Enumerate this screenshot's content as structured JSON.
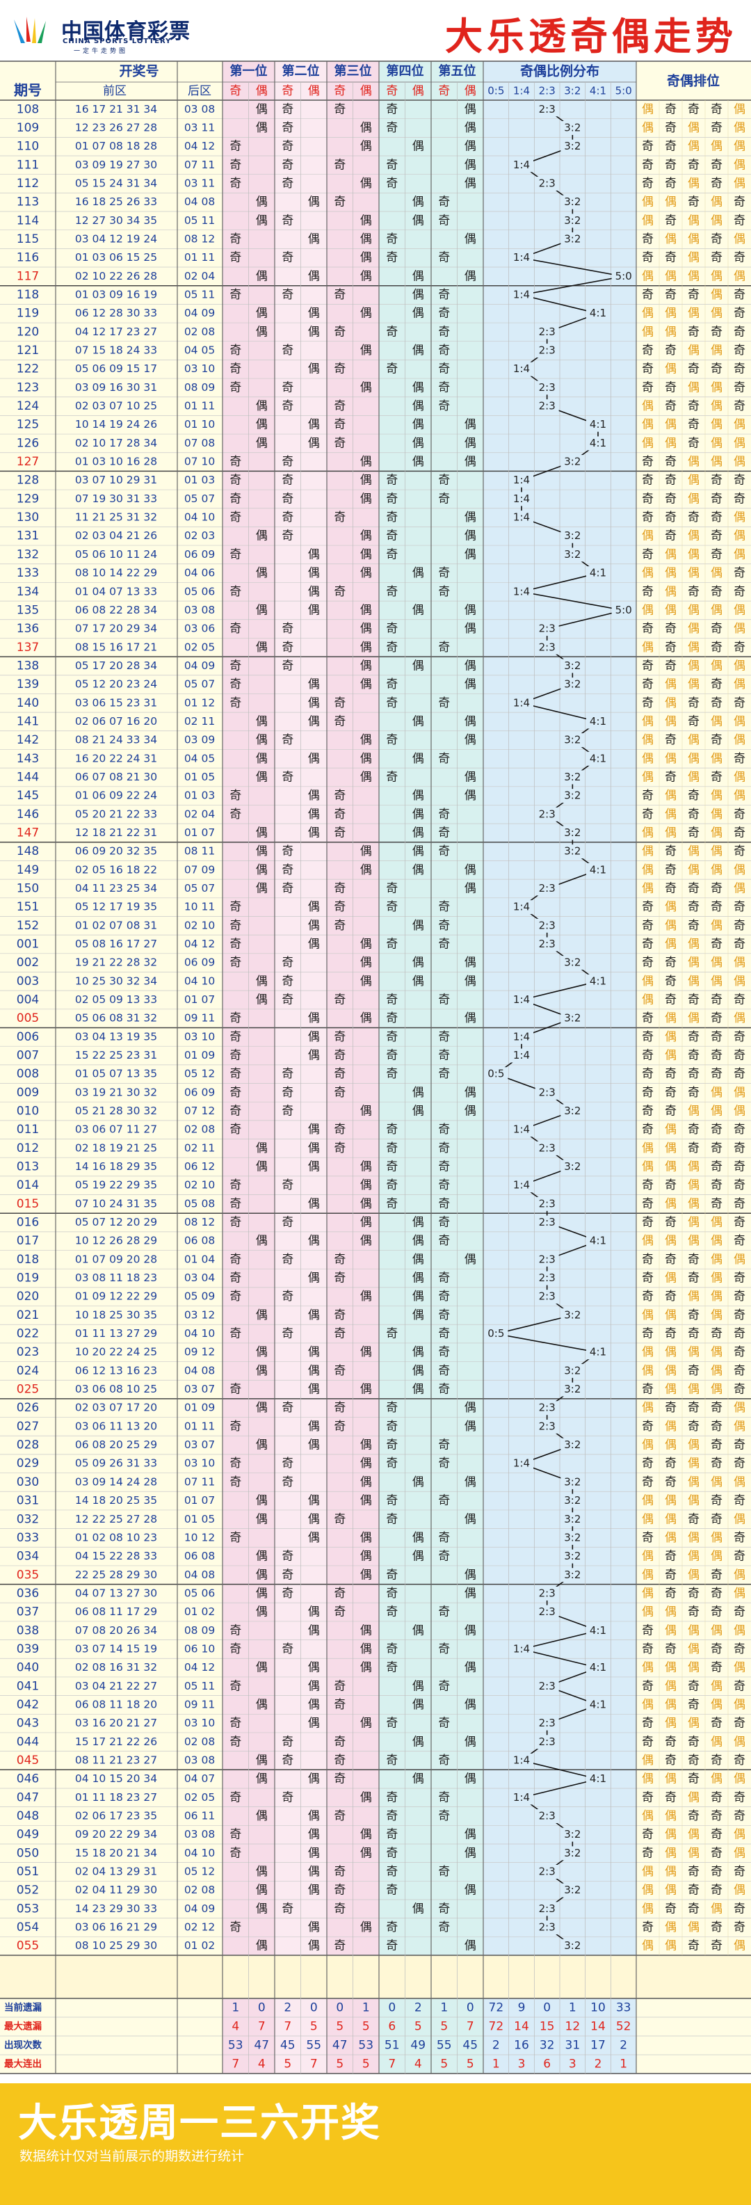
{
  "header": {
    "logo_cn": "中国体育彩票",
    "logo_en": "CHINA SPORTS LOTTERY",
    "logo_slogan": "一定牛走势图",
    "title": "大乐透奇偶走势"
  },
  "footer": {
    "title": "大乐透周一三六开奖",
    "note": "数据统计仅对当前展示的期数进行统计"
  },
  "colors": {
    "accent": "#e0241c",
    "brand": "#0e2a6e",
    "yellow": "#f6c51b",
    "odd_pink": "#f7dce8",
    "even_pink": "#fbeaf1",
    "pos45": "#d8f1ef",
    "ratio": "#d9ecf8",
    "prize": "#fffde4"
  },
  "chart_data": {
    "type": "table",
    "title": "大乐透奇偶走势",
    "columns": {
      "issue": "期号",
      "numbers": "开奖号",
      "front": "前区",
      "back": "后区",
      "positions": [
        "第一位",
        "第二位",
        "第三位",
        "第四位",
        "第五位"
      ],
      "odd": "奇",
      "even": "偶",
      "ratio_title": "奇偶比例分布",
      "ratios": [
        "0:5",
        "1:4",
        "2:3",
        "3:2",
        "4:1",
        "5:0"
      ],
      "arrangement": "奇偶排位"
    },
    "rows": [
      {
        "issue": "108",
        "front": "16 17 21 31 34",
        "back": "03 08"
      },
      {
        "issue": "109",
        "front": "12 23 26 27 28",
        "back": "03 11"
      },
      {
        "issue": "110",
        "front": "01 07 08 18 28",
        "back": "04 12"
      },
      {
        "issue": "111",
        "front": "03 09 19 27 30",
        "back": "07 11"
      },
      {
        "issue": "112",
        "front": "05 15 24 31 34",
        "back": "03 11"
      },
      {
        "issue": "113",
        "front": "16 18 25 26 33",
        "back": "04 08"
      },
      {
        "issue": "114",
        "front": "12 27 30 34 35",
        "back": "05 11"
      },
      {
        "issue": "115",
        "front": "03 04 12 19 24",
        "back": "08 12"
      },
      {
        "issue": "116",
        "front": "01 03 06 15 25",
        "back": "01 11"
      },
      {
        "issue": "117",
        "front": "02 10 22 26 28",
        "back": "02 04"
      },
      {
        "issue": "118",
        "front": "01 03 09 16 19",
        "back": "05 11"
      },
      {
        "issue": "119",
        "front": "06 12 28 30 33",
        "back": "04 09"
      },
      {
        "issue": "120",
        "front": "04 12 17 23 27",
        "back": "02 08"
      },
      {
        "issue": "121",
        "front": "07 15 18 24 33",
        "back": "04 05"
      },
      {
        "issue": "122",
        "front": "05 06 09 15 17",
        "back": "03 10"
      },
      {
        "issue": "123",
        "front": "03 09 16 30 31",
        "back": "08 09"
      },
      {
        "issue": "124",
        "front": "02 03 07 10 25",
        "back": "01 11"
      },
      {
        "issue": "125",
        "front": "10 14 19 24 26",
        "back": "01 10"
      },
      {
        "issue": "126",
        "front": "02 10 17 28 34",
        "back": "07 08"
      },
      {
        "issue": "127",
        "front": "01 03 10 16 28",
        "back": "07 10"
      },
      {
        "issue": "128",
        "front": "03 07 10 29 31",
        "back": "01 03"
      },
      {
        "issue": "129",
        "front": "07 19 30 31 33",
        "back": "05 07"
      },
      {
        "issue": "130",
        "front": "11 21 25 31 32",
        "back": "04 10"
      },
      {
        "issue": "131",
        "front": "02 03 04 21 26",
        "back": "02 03"
      },
      {
        "issue": "132",
        "front": "05 06 10 11 24",
        "back": "06 09"
      },
      {
        "issue": "133",
        "front": "08 10 14 22 29",
        "back": "04 06"
      },
      {
        "issue": "134",
        "front": "01 04 07 13 33",
        "back": "05 06"
      },
      {
        "issue": "135",
        "front": "06 08 22 28 34",
        "back": "03 08"
      },
      {
        "issue": "136",
        "front": "07 17 20 29 34",
        "back": "03 06"
      },
      {
        "issue": "137",
        "front": "08 15 16 17 21",
        "back": "02 05"
      },
      {
        "issue": "138",
        "front": "05 17 20 28 34",
        "back": "04 09"
      },
      {
        "issue": "139",
        "front": "05 12 20 23 24",
        "back": "05 07"
      },
      {
        "issue": "140",
        "front": "03 06 15 23 31",
        "back": "01 12"
      },
      {
        "issue": "141",
        "front": "02 06 07 16 20",
        "back": "02 11"
      },
      {
        "issue": "142",
        "front": "08 21 24 33 34",
        "back": "03 09"
      },
      {
        "issue": "143",
        "front": "16 20 22 24 31",
        "back": "04 05"
      },
      {
        "issue": "144",
        "front": "06 07 08 21 30",
        "back": "01 05"
      },
      {
        "issue": "145",
        "front": "01 06 09 22 24",
        "back": "01 03"
      },
      {
        "issue": "146",
        "front": "05 20 21 22 33",
        "back": "02 04"
      },
      {
        "issue": "147",
        "front": "12 18 21 22 31",
        "back": "01 07"
      },
      {
        "issue": "148",
        "front": "06 09 20 32 35",
        "back": "08 11"
      },
      {
        "issue": "149",
        "front": "02 05 16 18 22",
        "back": "07 09"
      },
      {
        "issue": "150",
        "front": "04 11 23 25 34",
        "back": "05 07"
      },
      {
        "issue": "151",
        "front": "05 12 17 19 35",
        "back": "10 11"
      },
      {
        "issue": "152",
        "front": "01 02 07 08 31",
        "back": "02 10"
      },
      {
        "issue": "001",
        "front": "05 08 16 17 27",
        "back": "04 12"
      },
      {
        "issue": "002",
        "front": "19 21 22 28 32",
        "back": "06 09"
      },
      {
        "issue": "003",
        "front": "10 25 30 32 34",
        "back": "04 10"
      },
      {
        "issue": "004",
        "front": "02 05 09 13 33",
        "back": "01 07"
      },
      {
        "issue": "005",
        "front": "05 06 08 31 32",
        "back": "09 11"
      },
      {
        "issue": "006",
        "front": "03 04 13 19 35",
        "back": "03 10"
      },
      {
        "issue": "007",
        "front": "15 22 25 23 31",
        "back": "01 09"
      },
      {
        "issue": "008",
        "front": "01 05 07 13 35",
        "back": "05 12"
      },
      {
        "issue": "009",
        "front": "03 19 21 30 32",
        "back": "06 09"
      },
      {
        "issue": "010",
        "front": "05 21 28 30 32",
        "back": "07 12"
      },
      {
        "issue": "011",
        "front": "03 06 07 11 27",
        "back": "02 08"
      },
      {
        "issue": "012",
        "front": "02 18 19 21 25",
        "back": "02 11"
      },
      {
        "issue": "013",
        "front": "14 16 18 29 35",
        "back": "06 12"
      },
      {
        "issue": "014",
        "front": "05 19 22 29 35",
        "back": "02 10"
      },
      {
        "issue": "015",
        "front": "07 10 24 31 35",
        "back": "05 08"
      },
      {
        "issue": "016",
        "front": "05 07 12 20 29",
        "back": "08 12"
      },
      {
        "issue": "017",
        "front": "10 12 26 28 29",
        "back": "06 08"
      },
      {
        "issue": "018",
        "front": "01 07 09 20 28",
        "back": "01 04"
      },
      {
        "issue": "019",
        "front": "03 08 11 18 23",
        "back": "03 04"
      },
      {
        "issue": "020",
        "front": "01 09 12 22 29",
        "back": "05 09"
      },
      {
        "issue": "021",
        "front": "10 18 25 30 35",
        "back": "03 12"
      },
      {
        "issue": "022",
        "front": "01 11 13 27 29",
        "back": "04 10"
      },
      {
        "issue": "023",
        "front": "10 20 22 24 25",
        "back": "09 12"
      },
      {
        "issue": "024",
        "front": "06 12 13 16 23",
        "back": "04 08"
      },
      {
        "issue": "025",
        "front": "03 06 08 10 25",
        "back": "03 07"
      },
      {
        "issue": "026",
        "front": "02 03 07 17 20",
        "back": "01 09"
      },
      {
        "issue": "027",
        "front": "03 06 11 13 20",
        "back": "01 11"
      },
      {
        "issue": "028",
        "front": "06 08 20 25 29",
        "back": "03 07"
      },
      {
        "issue": "029",
        "front": "05 09 26 31 33",
        "back": "03 10"
      },
      {
        "issue": "030",
        "front": "03 09 14 24 28",
        "back": "07 11"
      },
      {
        "issue": "031",
        "front": "14 18 20 25 35",
        "back": "01 07"
      },
      {
        "issue": "032",
        "front": "12 22 25 27 28",
        "back": "01 05"
      },
      {
        "issue": "033",
        "front": "01 02 08 10 23",
        "back": "10 12"
      },
      {
        "issue": "034",
        "front": "04 15 22 28 33",
        "back": "06 08"
      },
      {
        "issue": "035",
        "front": "22 25 28 29 30",
        "back": "04 08"
      },
      {
        "issue": "036",
        "front": "04 07 13 27 30",
        "back": "05 06"
      },
      {
        "issue": "037",
        "front": "06 08 11 17 29",
        "back": "01 02"
      },
      {
        "issue": "038",
        "front": "07 08 20 26 34",
        "back": "08 09"
      },
      {
        "issue": "039",
        "front": "03 07 14 15 19",
        "back": "06 10"
      },
      {
        "issue": "040",
        "front": "02 08 16 31 32",
        "back": "04 12"
      },
      {
        "issue": "041",
        "front": "03 04 21 22 27",
        "back": "05 11"
      },
      {
        "issue": "042",
        "front": "06 08 11 18 20",
        "back": "09 11"
      },
      {
        "issue": "043",
        "front": "03 16 20 21 27",
        "back": "03 10"
      },
      {
        "issue": "044",
        "front": "15 17 21 22 26",
        "back": "02 08"
      },
      {
        "issue": "045",
        "front": "08 11 21 23 27",
        "back": "03 08"
      },
      {
        "issue": "046",
        "front": "04 10 15 20 34",
        "back": "04 07"
      },
      {
        "issue": "047",
        "front": "01 11 18 23 27",
        "back": "02 05"
      },
      {
        "issue": "048",
        "front": "02 06 17 23 35",
        "back": "06 11"
      },
      {
        "issue": "049",
        "front": "09 20 22 29 34",
        "back": "03 08"
      },
      {
        "issue": "050",
        "front": "15 18 20 21 34",
        "back": "04 10"
      },
      {
        "issue": "051",
        "front": "02 04 13 29 31",
        "back": "05 12"
      },
      {
        "issue": "052",
        "front": "02 04 11 29 30",
        "back": "02 08"
      },
      {
        "issue": "053",
        "front": "14 23 29 30 33",
        "back": "04 09"
      },
      {
        "issue": "054",
        "front": "03 06 16 21 29",
        "back": "02 12"
      },
      {
        "issue": "055",
        "front": "08 10 25 29 30",
        "back": "01 02"
      }
    ],
    "stats": [
      {
        "label": "当前遗漏",
        "values": [
          "1",
          "0",
          "2",
          "0",
          "0",
          "1",
          "0",
          "2",
          "1",
          "0",
          "72",
          "9",
          "0",
          "1",
          "10",
          "33"
        ]
      },
      {
        "label": "最大遗漏",
        "values": [
          "4",
          "7",
          "7",
          "5",
          "5",
          "5",
          "6",
          "5",
          "5",
          "7",
          "72",
          "14",
          "15",
          "12",
          "14",
          "52"
        ]
      },
      {
        "label": "出现次数",
        "values": [
          "53",
          "47",
          "45",
          "55",
          "47",
          "53",
          "51",
          "49",
          "55",
          "45",
          "2",
          "16",
          "32",
          "31",
          "17",
          "2"
        ]
      },
      {
        "label": "最大连出",
        "values": [
          "7",
          "4",
          "5",
          "7",
          "5",
          "5",
          "7",
          "4",
          "5",
          "5",
          "1",
          "3",
          "6",
          "3",
          "2",
          "1"
        ]
      }
    ]
  }
}
